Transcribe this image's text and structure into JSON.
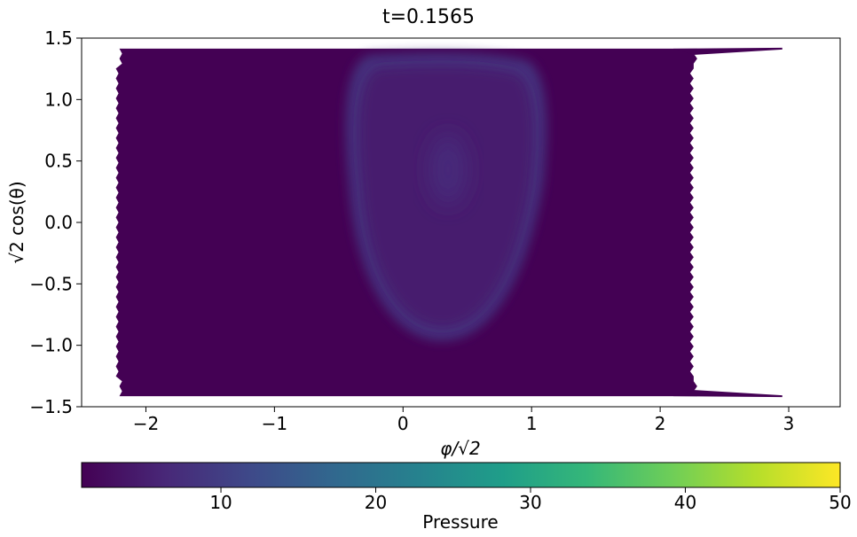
{
  "chart_data": {
    "type": "heatmap",
    "title": "t=0.1565",
    "xlabel": "φ/√2",
    "ylabel": "√2 cos(θ)",
    "xlim": [
      -2.5,
      3.4
    ],
    "ylim": [
      -1.5,
      1.5
    ],
    "x_ticks": [
      -2,
      -1,
      0,
      1,
      2,
      3
    ],
    "x_tick_labels": [
      "−2",
      "−1",
      "0",
      "1",
      "2",
      "3"
    ],
    "y_ticks": [
      -1.5,
      -1.0,
      -0.5,
      0.0,
      0.5,
      1.0,
      1.5
    ],
    "y_tick_labels": [
      "−1.5",
      "−1.0",
      "−0.5",
      "0.0",
      "0.5",
      "1.0",
      "1.5"
    ],
    "grid": false,
    "field": {
      "domain_x": [
        -2.22,
        2.24
      ],
      "domain_y": [
        -1.414,
        1.414
      ],
      "background_value": 1,
      "blob_center": [
        0.35,
        0.0
      ],
      "blob_core_value": 5,
      "ring_value": 8,
      "ring_x_range": [
        -0.45,
        1.12
      ],
      "ring_y_range": [
        -0.96,
        1.36
      ],
      "inner_peak": {
        "x": 0.35,
        "y": 0.43,
        "value": 7
      }
    },
    "colorbar": {
      "label": "Pressure",
      "range": [
        1,
        50
      ],
      "ticks": [
        10,
        20,
        30,
        40,
        50
      ],
      "tick_labels": [
        "10",
        "20",
        "30",
        "40",
        "50"
      ],
      "colormap": "viridis",
      "colors": [
        "#440154",
        "#482878",
        "#3e4989",
        "#31688e",
        "#26828e",
        "#1f9e89",
        "#35b779",
        "#6ece58",
        "#b5de2b",
        "#fde725"
      ]
    }
  }
}
